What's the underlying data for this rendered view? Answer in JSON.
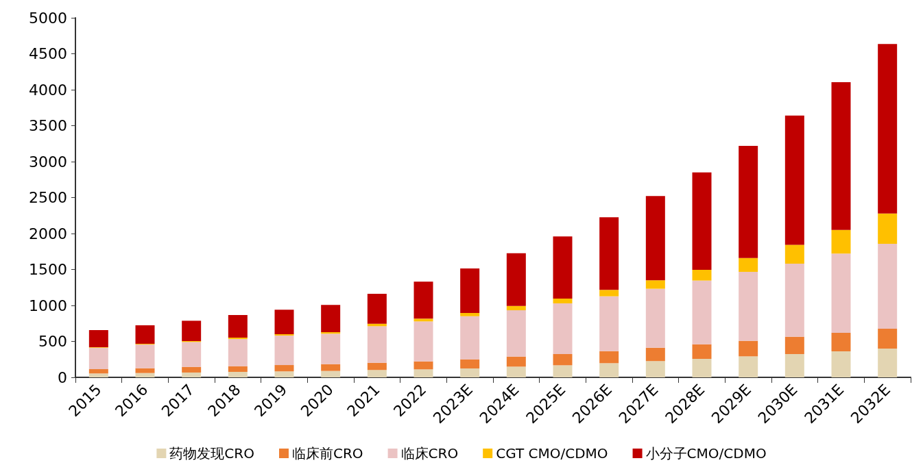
{
  "chart_data": {
    "type": "bar",
    "stacked": true,
    "legend": "bottom",
    "grid": false,
    "categories": [
      "2015",
      "2016",
      "2017",
      "2018",
      "2019",
      "2020",
      "2021",
      "2022",
      "2023E",
      "2024E",
      "2025E",
      "2026E",
      "2027E",
      "2028E",
      "2029E",
      "2030E",
      "2031E",
      "2032E"
    ],
    "ylim": [
      0,
      5000
    ],
    "yticks": [
      0,
      500,
      1000,
      1500,
      2000,
      2500,
      3000,
      3500,
      4000,
      4500,
      5000
    ],
    "series": [
      {
        "name": "药物发现CRO",
        "color": "#e3d5b2",
        "values": [
          54,
          60,
          67,
          76,
          83,
          89,
          102,
          111,
          124,
          149,
          168,
          197,
          226,
          257,
          292,
          324,
          362,
          400
        ]
      },
      {
        "name": "临床前CRO",
        "color": "#ed7d31",
        "values": [
          60,
          67,
          79,
          79,
          88,
          95,
          101,
          111,
          127,
          140,
          156,
          168,
          186,
          203,
          216,
          241,
          257,
          276
        ]
      },
      {
        "name": "临床CRO",
        "color": "#ebc3c3",
        "values": [
          298,
          330,
          346,
          378,
          410,
          423,
          508,
          556,
          599,
          644,
          705,
          762,
          820,
          886,
          959,
          1016,
          1102,
          1181
        ]
      },
      {
        "name": "CGT CMO/CDMO",
        "color": "#ffc000",
        "values": [
          7,
          10,
          13,
          19,
          19,
          22,
          35,
          38,
          45,
          60,
          66,
          89,
          118,
          149,
          193,
          263,
          329,
          422
        ]
      },
      {
        "name": "小分子CMO/CDMO",
        "color": "#c00000",
        "values": [
          238,
          257,
          282,
          315,
          340,
          377,
          416,
          514,
          619,
          734,
          864,
          1010,
          1171,
          1355,
          1560,
          1796,
          2055,
          2356
        ]
      }
    ]
  }
}
